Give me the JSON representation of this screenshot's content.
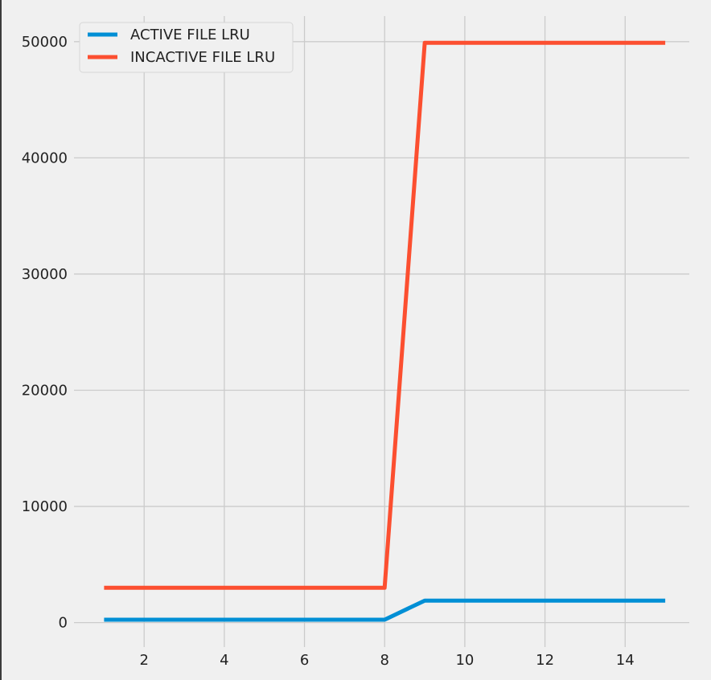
{
  "chart_data": {
    "type": "line",
    "title": "",
    "xlabel": "",
    "ylabel": "",
    "x": [
      1,
      2,
      3,
      4,
      5,
      6,
      7,
      8,
      9,
      10,
      11,
      12,
      13,
      14,
      15
    ],
    "xlim": [
      0.25,
      15.6
    ],
    "ylim": [
      -2100,
      52200
    ],
    "xticks": [
      2,
      4,
      6,
      8,
      10,
      12,
      14
    ],
    "yticks": [
      0,
      10000,
      20000,
      30000,
      40000,
      50000
    ],
    "grid": true,
    "legend_position": "top-left",
    "series": [
      {
        "name": "ACTIVE FILE LRU",
        "color": "#008fd5",
        "values": [
          250,
          250,
          250,
          250,
          250,
          250,
          250,
          250,
          1900,
          1900,
          1900,
          1900,
          1900,
          1900,
          1900
        ]
      },
      {
        "name": "INCACTIVE FILE LRU",
        "color": "#fc4f30",
        "values": [
          3000,
          3000,
          3000,
          3000,
          3000,
          3000,
          3000,
          3000,
          49900,
          49900,
          49900,
          49900,
          49900,
          49900,
          49900
        ]
      }
    ]
  }
}
